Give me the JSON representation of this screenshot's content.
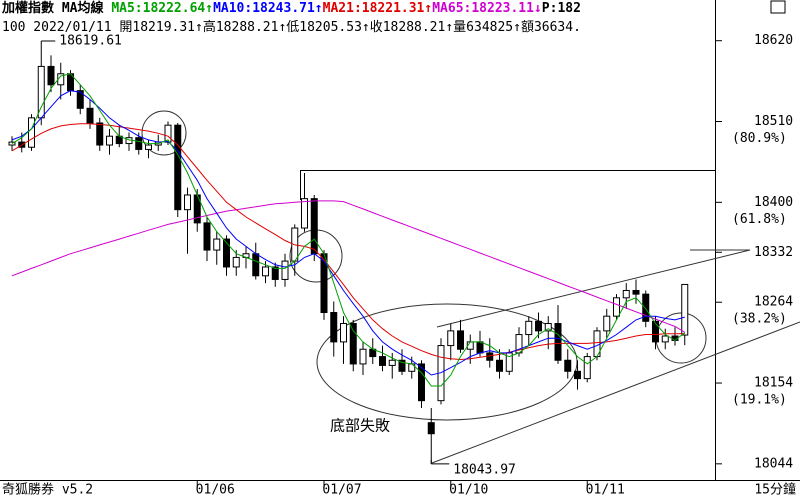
{
  "chart_data": {
    "type": "candlestick",
    "header": [
      [
        {
          "text": "加權指數 MA均線 ",
          "color": "#000000"
        },
        {
          "text": "MA5:18222.64↑",
          "color": "#00a000"
        },
        {
          "text": "MA10:18243.71↑",
          "color": "#0000ff"
        },
        {
          "text": "MA21:18221.31↑",
          "color": "#e00000"
        },
        {
          "text": "MA65:18223.11↓",
          "color": "#d000d0"
        },
        {
          "text": "P:182",
          "color": "#000000"
        }
      ],
      [
        {
          "text": "100 2022/01/11 開18219.31↑高18288.21↑低18205.53↑收18288.21↑量634825↑額36634.",
          "color": "#000000"
        }
      ]
    ],
    "categories": [
      null,
      null,
      null,
      null,
      null,
      null,
      null,
      null,
      null,
      null,
      null,
      null,
      null,
      null,
      null,
      null,
      null,
      null,
      null,
      "01/06",
      null,
      null,
      null,
      null,
      null,
      null,
      null,
      null,
      null,
      null,
      null,
      null,
      "01/07",
      null,
      null,
      null,
      null,
      null,
      null,
      null,
      null,
      null,
      null,
      null,
      null,
      "01/10",
      null,
      null,
      null,
      null,
      null,
      null,
      null,
      null,
      null,
      null,
      null,
      null,
      null,
      "01/11",
      null,
      null,
      null,
      null,
      null,
      null,
      null,
      null,
      null,
      null
    ],
    "open": [
      18478,
      18482,
      18475,
      18515,
      18585,
      18560,
      18575,
      18552,
      18528,
      18508,
      18478,
      18490,
      18480,
      18488,
      18472,
      18478,
      18482,
      18505,
      18390,
      18410,
      18372,
      18335,
      18350,
      18312,
      18325,
      18330,
      18300,
      18312,
      18295,
      18320,
      18365,
      18405,
      18330,
      18250,
      18210,
      18235,
      18180,
      18200,
      18190,
      18178,
      18185,
      18170,
      18180,
      18100,
      18130,
      18205,
      18225,
      18200,
      18210,
      18195,
      18185,
      18170,
      18195,
      18220,
      18238,
      18225,
      18235,
      18185,
      18170,
      18160,
      18190,
      18225,
      18245,
      18270,
      18280,
      18275,
      18238,
      18210,
      18218,
      18219.31
    ],
    "high": [
      18490,
      18495,
      18520,
      18619.61,
      18600,
      18590,
      18580,
      18560,
      18540,
      18515,
      18500,
      18505,
      18495,
      18495,
      18485,
      18492,
      18510,
      18508,
      18420,
      18418,
      18380,
      18360,
      18355,
      18335,
      18340,
      18345,
      18320,
      18318,
      18330,
      18370,
      18440,
      18410,
      18335,
      18265,
      18245,
      18240,
      18210,
      18215,
      18205,
      18195,
      18200,
      18190,
      18185,
      18120,
      18215,
      18235,
      18240,
      18220,
      18225,
      18215,
      18200,
      18200,
      18230,
      18245,
      18250,
      18245,
      18260,
      18200,
      18185,
      18195,
      18230,
      18255,
      18275,
      18290,
      18295,
      18280,
      18245,
      18228,
      18230,
      18288.21
    ],
    "low": [
      18470,
      18468,
      18470,
      18505,
      18550,
      18540,
      18545,
      18520,
      18500,
      18470,
      18465,
      18475,
      18470,
      18465,
      18460,
      18470,
      18478,
      18380,
      18330,
      18360,
      18320,
      18315,
      18300,
      18300,
      18310,
      18295,
      18290,
      18285,
      18285,
      18300,
      18360,
      18320,
      18240,
      18190,
      18180,
      18170,
      18165,
      18180,
      18170,
      18160,
      18165,
      18160,
      18120,
      18043.97,
      18125,
      18185,
      18195,
      18180,
      18190,
      18175,
      18160,
      18165,
      18190,
      18205,
      18215,
      18200,
      18180,
      18160,
      18145,
      18155,
      18185,
      18215,
      18240,
      18255,
      18262,
      18230,
      18200,
      18200,
      18205,
      18205.53
    ],
    "close": [
      18482,
      18475,
      18515,
      18585,
      18560,
      18575,
      18552,
      18528,
      18508,
      18478,
      18490,
      18480,
      18488,
      18472,
      18478,
      18482,
      18505,
      18390,
      18410,
      18372,
      18335,
      18350,
      18312,
      18325,
      18330,
      18300,
      18312,
      18295,
      18320,
      18365,
      18405,
      18330,
      18250,
      18210,
      18235,
      18180,
      18200,
      18190,
      18178,
      18185,
      18170,
      18180,
      18130,
      18085,
      18205,
      18225,
      18200,
      18210,
      18195,
      18185,
      18170,
      18195,
      18220,
      18238,
      18225,
      18235,
      18185,
      18170,
      18160,
      18190,
      18225,
      18245,
      18270,
      18280,
      18275,
      18238,
      18210,
      18218,
      18212,
      18288.21
    ],
    "series": [
      {
        "color": "#d000d0",
        "values": [
          18300,
          18305,
          18310,
          18315,
          18320,
          18325,
          18330,
          18334,
          18338,
          18342,
          18346,
          18350,
          18354,
          18358,
          18362,
          18366,
          18370,
          18373,
          18376,
          18379,
          18382,
          18385,
          18388,
          18390,
          18392,
          18394,
          18396,
          18398,
          18399,
          18400,
          18401,
          18402,
          18402,
          18402,
          18401,
          18396,
          18391,
          18386,
          18381,
          18376,
          18371,
          18366,
          18361,
          18356,
          18351,
          18346,
          18341,
          18336,
          18331,
          18326,
          18321,
          18316,
          18311,
          18306,
          18301,
          18296,
          18291,
          18286,
          18281,
          18276,
          18271,
          18266,
          18261,
          18256,
          18251,
          18246,
          18241,
          18236,
          18231,
          18223.11
        ]
      },
      {
        "color": "#e00000",
        "values": [
          18470,
          18478,
          18486,
          18494,
          18500,
          18504,
          18506,
          18507,
          18507,
          18506,
          18505,
          18503,
          18501,
          18499,
          18497,
          18494,
          18490,
          18478,
          18462,
          18446,
          18430,
          18415,
          18400,
          18390,
          18380,
          18372,
          18364,
          18356,
          18348,
          18342,
          18340,
          18336,
          18322,
          18305,
          18288,
          18270,
          18255,
          18240,
          18228,
          18218,
          18210,
          18204,
          18198,
          18193,
          18189,
          18187,
          18186,
          18187,
          18189,
          18191,
          18193,
          18196,
          18199,
          18202,
          18205,
          18207,
          18208,
          18208,
          18208,
          18208,
          18209,
          18210,
          18212,
          18215,
          18218,
          18220,
          18220,
          18221,
          18221,
          18221.31
        ]
      },
      {
        "color": "#0000ff",
        "values": [
          18485,
          18490,
          18500,
          18515,
          18530,
          18545,
          18552,
          18550,
          18540,
          18528,
          18515,
          18505,
          18498,
          18490,
          18485,
          18482,
          18483,
          18470,
          18450,
          18430,
          18405,
          18385,
          18365,
          18350,
          18340,
          18330,
          18322,
          18315,
          18312,
          18315,
          18325,
          18330,
          18320,
          18300,
          18280,
          18262,
          18245,
          18225,
          18210,
          18200,
          18192,
          18185,
          18175,
          18165,
          18168,
          18175,
          18182,
          18190,
          18195,
          18198,
          18195,
          18195,
          18200,
          18205,
          18210,
          18215,
          18215,
          18210,
          18205,
          18200,
          18205,
          18212,
          18220,
          18230,
          18240,
          18245,
          18245,
          18242,
          18240,
          18243.71
        ]
      },
      {
        "color": "#00a000",
        "values": [
          18480,
          18488,
          18500,
          18530,
          18555,
          18572,
          18575,
          18560,
          18545,
          18525,
          18505,
          18490,
          18485,
          18483,
          18480,
          18480,
          18485,
          18465,
          18440,
          18410,
          18380,
          18360,
          18345,
          18330,
          18325,
          18320,
          18315,
          18310,
          18310,
          18320,
          18340,
          18350,
          18330,
          18290,
          18250,
          18225,
          18210,
          18200,
          18195,
          18188,
          18182,
          18180,
          18168,
          18150,
          18150,
          18165,
          18190,
          18210,
          18210,
          18205,
          18195,
          18190,
          18195,
          18205,
          18220,
          18228,
          18220,
          18205,
          18190,
          18180,
          18190,
          18215,
          18240,
          18265,
          18270,
          18255,
          18235,
          18220,
          18212,
          18222.64
        ]
      }
    ],
    "ylim": [
      18022,
      18655
    ],
    "yticks": [
      18620,
      18510,
      18400,
      18332,
      18264,
      18154,
      18044
    ],
    "fib_labels": [
      {
        "value": 18510,
        "label": "(80.9%)"
      },
      {
        "value": 18400,
        "label": "(61.8%)"
      },
      {
        "value": 18264,
        "label": "(38.2%)"
      },
      {
        "value": 18154,
        "label": "(19.1%)"
      }
    ],
    "high_annotation": 18619.61,
    "low_annotation": 18043.97,
    "annotation": "底部失敗",
    "footer_left": "奇狐勝券 v5.2",
    "footer_right": "15分鐘"
  }
}
